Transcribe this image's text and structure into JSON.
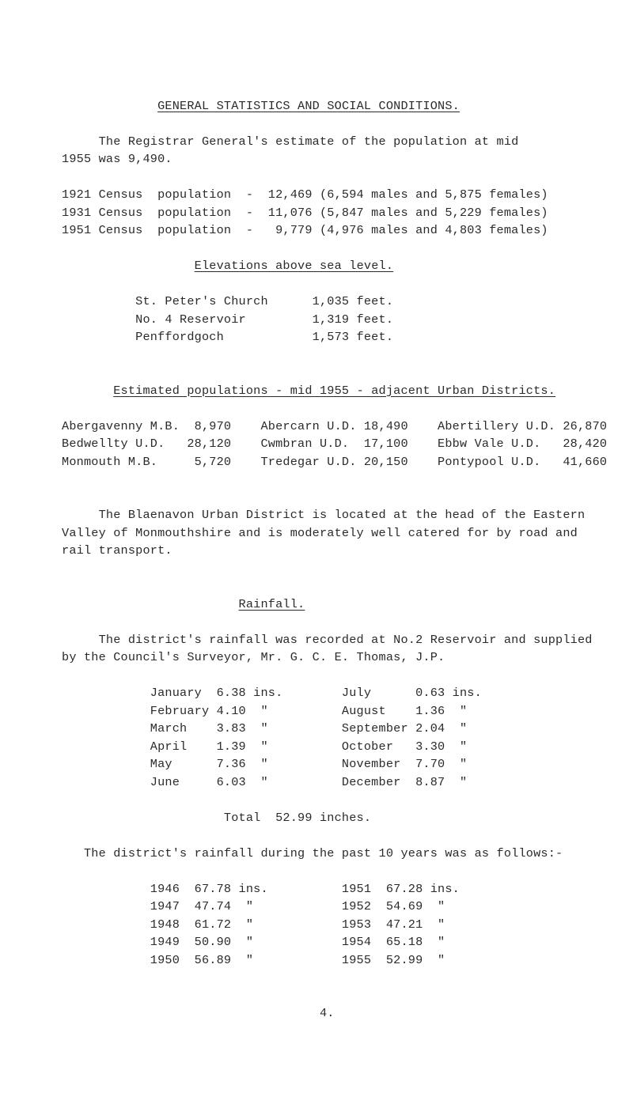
{
  "title": "GENERAL STATISTICS AND SOCIAL CONDITIONS.",
  "intro1": "     The Registrar General's estimate of the population at mid",
  "intro2": "1955 was 9,490.",
  "census": {
    "r1": "1921 Census  population  -  12,469 (6,594 males and 5,875 females)",
    "r2": "1931 Census  population  -  11,076 (5,847 males and 5,229 females)",
    "r3": "1951 Census  population  -   9,779 (4,976 males and 4,803 females)"
  },
  "elev_head": "Elevations above sea level.",
  "elev": {
    "r1": "          St. Peter's Church      1,035 feet.",
    "r2": "          No. 4 Reservoir         1,319 feet.",
    "r3": "          Penffordgoch            1,573 feet."
  },
  "estpop_head": "Estimated populations - mid 1955 - adjacent Urban Districts.",
  "estpop": {
    "r1": "Abergavenny M.B.  8,970    Abercarn U.D. 18,490    Abertillery U.D. 26,870",
    "r2": "Bedwellty U.D.   28,120    Cwmbran U.D.  17,100    Ebbw Vale U.D.   28,420",
    "r3": "Monmouth M.B.     5,720    Tredegar U.D. 20,150    Pontypool U.D.   41,660"
  },
  "blaenavon1": "     The Blaenavon Urban District is located at the head of the Eastern",
  "blaenavon2": "Valley of Monmouthshire and is moderately well catered for by road and",
  "blaenavon3": "rail transport.",
  "rain_head": "Rainfall.",
  "rain_intro1": "     The district's rainfall was recorded at No.2 Reservoir and supplied",
  "rain_intro2": "by the Council's Surveyor, Mr. G. C. E. Thomas, J.P.",
  "rain": {
    "r1": "            January  6.38 ins.        July      0.63 ins.",
    "r2": "            February 4.10  \"          August    1.36  \"",
    "r3": "            March    3.83  \"          September 2.04  \"",
    "r4": "            April    1.39  \"          October   3.30  \"",
    "r5": "            May      7.36  \"          November  7.70  \"",
    "r6": "            June     6.03  \"          December  8.87  \""
  },
  "rain_total": "                      Total  52.99 inches.",
  "past10_intro": "   The district's rainfall during the past 10 years was as follows:-",
  "past10": {
    "r1": "            1946  67.78 ins.          1951  67.28 ins.",
    "r2": "            1947  47.74  \"            1952  54.69  \"",
    "r3": "            1948  61.72  \"            1953  47.21  \"",
    "r4": "            1949  50.90  \"            1954  65.18  \"",
    "r5": "            1950  56.89  \"            1955  52.99  \""
  },
  "pagenum": "                                   4."
}
